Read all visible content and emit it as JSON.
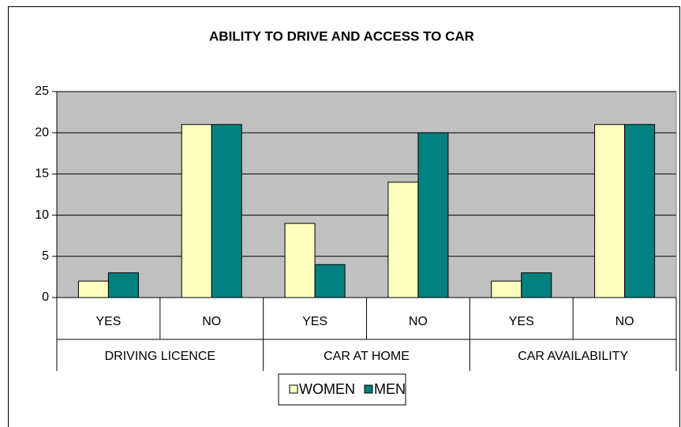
{
  "chart_data": {
    "type": "bar",
    "title": "ABILITY TO DRIVE AND ACCESS TO CAR",
    "categories": [
      "YES",
      "NO",
      "YES",
      "NO",
      "YES",
      "NO"
    ],
    "groups": [
      "DRIVING LICENCE",
      "CAR AT HOME",
      "CAR AVAILABILITY"
    ],
    "series": [
      {
        "name": "WOMEN",
        "color": "#ffffc0",
        "values": [
          2,
          21,
          9,
          14,
          2,
          21
        ]
      },
      {
        "name": "MEN",
        "color": "#008080",
        "values": [
          3,
          21,
          4,
          20,
          3,
          21
        ]
      }
    ],
    "ylim": [
      0,
      25
    ],
    "yticks": [
      0,
      5,
      10,
      15,
      20,
      25
    ],
    "grid": true,
    "legend": "bottom"
  }
}
